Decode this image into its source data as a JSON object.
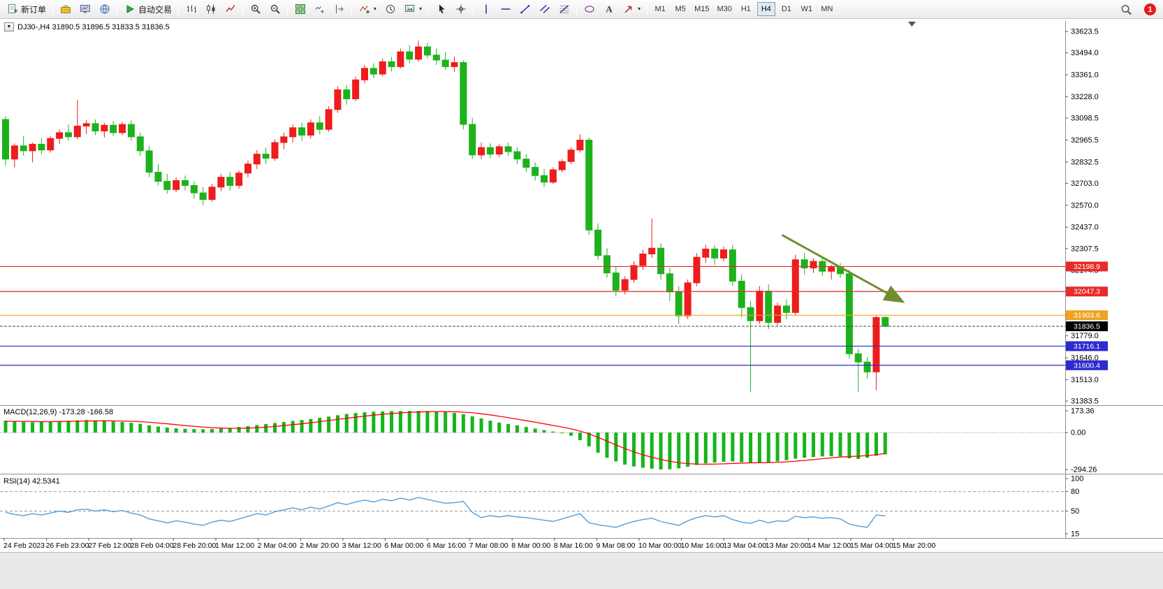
{
  "toolbar": {
    "new_order_label": "新订单",
    "auto_trading_label": "自动交易",
    "left_icons": [
      "metaeditor",
      "market-watch",
      "community"
    ],
    "chart_icons": [
      "bar-chart",
      "candlestick-chart",
      "line-chart",
      "|",
      "zoom-in",
      "zoom-out",
      "|",
      "tile-windows",
      "auto-scroll",
      "chart-shift",
      "|",
      "indicators-add",
      "periods",
      "templates"
    ],
    "draw_icons": [
      "cursor",
      "crosshair",
      "|",
      "vertical-line",
      "horizontal-line",
      "trendline",
      "channel",
      "fibonacci",
      "|",
      "shapes",
      "text",
      "arrows"
    ],
    "caret_icons": [
      "indicators-add",
      "templates",
      "arrows"
    ],
    "timeframes": [
      "M1",
      "M5",
      "M15",
      "M30",
      "H1",
      "H4",
      "D1",
      "W1",
      "MN"
    ],
    "active_timeframe": "H4",
    "notification_count": "1"
  },
  "chart": {
    "symbol_ohlc_label": "DJ30-,H4 31890.5 31896.5 31833.5 31836.5",
    "price_axis_ticks": [
      "33623.5",
      "33494.0",
      "33361.0",
      "33228.0",
      "33098.5",
      "32965.5",
      "32832.5",
      "32703.0",
      "32570.0",
      "32437.0",
      "32307.5",
      "32174.5",
      "31779.0",
      "31646.0",
      "31513.0",
      "31383.5"
    ],
    "hlines": [
      {
        "price": 32198.9,
        "label": "32198.9",
        "color": "#e82a2a"
      },
      {
        "price": 32047.3,
        "label": "32047.3",
        "color": "#e82a2a"
      },
      {
        "price": 31903.6,
        "label": "31903.6",
        "color": "#eda321"
      },
      {
        "price": 31716.1,
        "label": "31716.1",
        "color": "#2b2bd0"
      },
      {
        "price": 31600.4,
        "label": "31600.4",
        "color": "#2b2bd0"
      }
    ],
    "current_price": {
      "price": 31836.5,
      "label": "31836.5",
      "color": "#000000"
    },
    "trend_arrow": {
      "from_index": 86.5,
      "from_price": 32390,
      "to_index": 99.8,
      "to_price": 31990,
      "color": "#6f8f2f"
    },
    "colors": {
      "up_candle": "#ee1c1c",
      "down_candle": "#1cb21c",
      "macd_bar": "#15b51a",
      "macd_signal": "#ff0000",
      "rsi_line": "#529fdc"
    }
  },
  "macd": {
    "label": "MACD(12,26,9) -173.28 -166.58",
    "axis": [
      "173.36",
      "0.00",
      "-294.26"
    ]
  },
  "rsi": {
    "label": "RSI(14) 42.5341",
    "axis": [
      "100",
      "80",
      "50",
      "15"
    ],
    "levels": [
      80,
      50
    ]
  },
  "time_axis": [
    "24 Feb 2023",
    "26 Feb 23:00",
    "27 Feb 12:00",
    "28 Feb 04:00",
    "28 Feb 20:00",
    "1 Mar 12:00",
    "2 Mar 04:00",
    "2 Mar 20:00",
    "3 Mar 12:00",
    "6 Mar 00:00",
    "6 Mar 16:00",
    "7 Mar 08:00",
    "8 Mar 00:00",
    "8 Mar 16:00",
    "9 Mar 08:00",
    "10 Mar 00:00",
    "10 Mar 16:00",
    "13 Mar 04:00",
    "13 Mar 20:00",
    "14 Mar 12:00",
    "15 Mar 04:00",
    "15 Mar 20:00"
  ],
  "chart_data": {
    "type": "candlestick",
    "symbol": "DJ30-",
    "period": "H4",
    "price_range": {
      "max": 33623.5,
      "min": 31383.5
    },
    "ohlc": [
      [
        33090,
        33110,
        32810,
        32850
      ],
      [
        32850,
        32945,
        32800,
        32930
      ],
      [
        32930,
        32990,
        32870,
        32900
      ],
      [
        32900,
        32950,
        32830,
        32940
      ],
      [
        32940,
        32975,
        32880,
        32905
      ],
      [
        32905,
        32990,
        32890,
        32975
      ],
      [
        32975,
        33030,
        32940,
        33010
      ],
      [
        33010,
        33060,
        32960,
        32985
      ],
      [
        32985,
        33209,
        32970,
        33050
      ],
      [
        33050,
        33085,
        33000,
        33065
      ],
      [
        33065,
        33090,
        32995,
        33020
      ],
      [
        33020,
        33070,
        32980,
        33055
      ],
      [
        33055,
        33080,
        32990,
        33010
      ],
      [
        33010,
        33075,
        32995,
        33060
      ],
      [
        33060,
        33085,
        32960,
        32985
      ],
      [
        32985,
        33010,
        32870,
        32900
      ],
      [
        32900,
        32930,
        32740,
        32770
      ],
      [
        32770,
        32820,
        32690,
        32715
      ],
      [
        32715,
        32760,
        32640,
        32665
      ],
      [
        32665,
        32740,
        32650,
        32720
      ],
      [
        32720,
        32750,
        32660,
        32690
      ],
      [
        32690,
        32715,
        32610,
        32645
      ],
      [
        32645,
        32680,
        32570,
        32605
      ],
      [
        32605,
        32700,
        32590,
        32680
      ],
      [
        32680,
        32760,
        32655,
        32740
      ],
      [
        32740,
        32770,
        32660,
        32690
      ],
      [
        32690,
        32780,
        32670,
        32765
      ],
      [
        32765,
        32840,
        32740,
        32820
      ],
      [
        32820,
        32905,
        32790,
        32880
      ],
      [
        32880,
        32920,
        32820,
        32855
      ],
      [
        32855,
        32970,
        32840,
        32950
      ],
      [
        32950,
        33010,
        32910,
        32985
      ],
      [
        32985,
        33060,
        32950,
        33040
      ],
      [
        33040,
        33070,
        32960,
        32995
      ],
      [
        32995,
        33090,
        32975,
        33070
      ],
      [
        33070,
        33110,
        33000,
        33030
      ],
      [
        33030,
        33170,
        33015,
        33150
      ],
      [
        33150,
        33290,
        33130,
        33270
      ],
      [
        33270,
        33300,
        33180,
        33215
      ],
      [
        33215,
        33350,
        33200,
        33330
      ],
      [
        33330,
        33420,
        33310,
        33400
      ],
      [
        33400,
        33430,
        33340,
        33365
      ],
      [
        33365,
        33460,
        33350,
        33440
      ],
      [
        33440,
        33470,
        33380,
        33410
      ],
      [
        33410,
        33520,
        33400,
        33500
      ],
      [
        33500,
        33540,
        33430,
        33455
      ],
      [
        33455,
        33568,
        33440,
        33530
      ],
      [
        33530,
        33555,
        33460,
        33480
      ],
      [
        33480,
        33520,
        33420,
        33450
      ],
      [
        33450,
        33500,
        33390,
        33410
      ],
      [
        33410,
        33470,
        33380,
        33435
      ],
      [
        33435,
        33450,
        33030,
        33060
      ],
      [
        33060,
        33100,
        32850,
        32875
      ],
      [
        32875,
        32950,
        32850,
        32920
      ],
      [
        32920,
        32945,
        32855,
        32880
      ],
      [
        32880,
        32940,
        32860,
        32925
      ],
      [
        32925,
        32950,
        32870,
        32895
      ],
      [
        32895,
        32920,
        32820,
        32850
      ],
      [
        32850,
        32880,
        32770,
        32800
      ],
      [
        32800,
        32830,
        32720,
        32750
      ],
      [
        32750,
        32790,
        32680,
        32710
      ],
      [
        32710,
        32800,
        32700,
        32785
      ],
      [
        32785,
        32850,
        32770,
        32835
      ],
      [
        32835,
        32920,
        32820,
        32905
      ],
      [
        32905,
        33000,
        32890,
        32965
      ],
      [
        32965,
        32980,
        32390,
        32420
      ],
      [
        32420,
        32460,
        32240,
        32265
      ],
      [
        32265,
        32310,
        32130,
        32160
      ],
      [
        32160,
        32200,
        32020,
        32055
      ],
      [
        32055,
        32140,
        32030,
        32120
      ],
      [
        32120,
        32230,
        32100,
        32205
      ],
      [
        32205,
        32300,
        32180,
        32275
      ],
      [
        32275,
        32490,
        32250,
        32310
      ],
      [
        32310,
        32340,
        32120,
        32155
      ],
      [
        32155,
        32190,
        31990,
        32045
      ],
      [
        32045,
        32080,
        31850,
        31900
      ],
      [
        31900,
        32120,
        31880,
        32100
      ],
      [
        32100,
        32280,
        32080,
        32255
      ],
      [
        32255,
        32330,
        32220,
        32305
      ],
      [
        32305,
        32330,
        32210,
        32250
      ],
      [
        32250,
        32320,
        32230,
        32300
      ],
      [
        32300,
        32330,
        32080,
        32110
      ],
      [
        32110,
        32150,
        31890,
        31950
      ],
      [
        31950,
        31990,
        31440,
        31870
      ],
      [
        31870,
        32080,
        31850,
        32050
      ],
      [
        32050,
        32090,
        31820,
        31860
      ],
      [
        31860,
        31980,
        31840,
        31960
      ],
      [
        31960,
        32000,
        31880,
        31920
      ],
      [
        31920,
        32270,
        31900,
        32240
      ],
      [
        32240,
        32280,
        32150,
        32190
      ],
      [
        32190,
        32250,
        32160,
        32230
      ],
      [
        32230,
        32260,
        32140,
        32170
      ],
      [
        32170,
        32210,
        32120,
        32195
      ],
      [
        32195,
        32220,
        32130,
        32155
      ],
      [
        32155,
        32180,
        31640,
        31670
      ],
      [
        31670,
        31700,
        31440,
        31620
      ],
      [
        31620,
        31650,
        31520,
        31560
      ],
      [
        31560,
        31900,
        31450,
        31890
      ],
      [
        31890.5,
        31896.5,
        31833.5,
        31836.5
      ]
    ],
    "macd_range": {
      "max": 173.36,
      "min": -294.26
    },
    "macd_histogram": [
      95,
      90,
      85,
      82,
      85,
      88,
      92,
      95,
      98,
      100,
      96,
      92,
      88,
      84,
      78,
      70,
      58,
      48,
      40,
      34,
      30,
      28,
      26,
      28,
      32,
      38,
      45,
      52,
      60,
      68,
      76,
      85,
      93,
      100,
      108,
      118,
      128,
      138,
      148,
      156,
      162,
      166,
      169,
      171,
      172,
      173,
      173,
      172,
      169,
      164,
      157,
      147,
      130,
      112,
      95,
      80,
      68,
      58,
      45,
      32,
      20,
      8,
      -5,
      -25,
      -60,
      -110,
      -160,
      -200,
      -230,
      -255,
      -270,
      -280,
      -288,
      -294,
      -292,
      -285,
      -272,
      -258,
      -245,
      -238,
      -232,
      -230,
      -235,
      -240,
      -242,
      -238,
      -230,
      -220,
      -208,
      -200,
      -195,
      -190,
      -188,
      -190,
      -205,
      -210,
      -200,
      -185,
      -173.28
    ],
    "macd_signal": [
      90,
      90,
      89,
      88,
      87,
      87,
      88,
      89,
      90,
      92,
      93,
      94,
      93,
      92,
      90,
      87,
      82,
      76,
      70,
      63,
      56,
      50,
      44,
      39,
      36,
      34,
      34,
      36,
      39,
      43,
      49,
      56,
      63,
      70,
      78,
      87,
      96,
      105,
      114,
      123,
      131,
      139,
      146,
      152,
      157,
      161,
      164,
      166,
      167,
      167,
      166,
      163,
      158,
      150,
      141,
      130,
      119,
      107,
      95,
      83,
      70,
      57,
      44,
      30,
      12,
      -10,
      -38,
      -68,
      -98,
      -127,
      -154,
      -177,
      -197,
      -214,
      -229,
      -240,
      -247,
      -251,
      -252,
      -251,
      -249,
      -246,
      -243,
      -241,
      -240,
      -239,
      -237,
      -233,
      -228,
      -222,
      -215,
      -208,
      -201,
      -195,
      -191,
      -188,
      -183,
      -176,
      -166.58
    ],
    "rsi_values": [
      48,
      45,
      43,
      46,
      44,
      47,
      50,
      48,
      52,
      53,
      50,
      52,
      49,
      51,
      47,
      44,
      38,
      35,
      32,
      35,
      33,
      30,
      28,
      33,
      36,
      34,
      38,
      42,
      46,
      44,
      49,
      52,
      55,
      52,
      56,
      53,
      58,
      63,
      60,
      64,
      67,
      64,
      68,
      66,
      70,
      67,
      71,
      68,
      65,
      62,
      63,
      65,
      48,
      40,
      43,
      41,
      43,
      41,
      40,
      38,
      36,
      34,
      38,
      42,
      46,
      32,
      29,
      27,
      25,
      30,
      34,
      37,
      39,
      34,
      31,
      28,
      35,
      40,
      43,
      41,
      43,
      37,
      33,
      31,
      36,
      32,
      35,
      34,
      42,
      40,
      41,
      39,
      40,
      38,
      30,
      27,
      25,
      44,
      42.5341
    ]
  }
}
